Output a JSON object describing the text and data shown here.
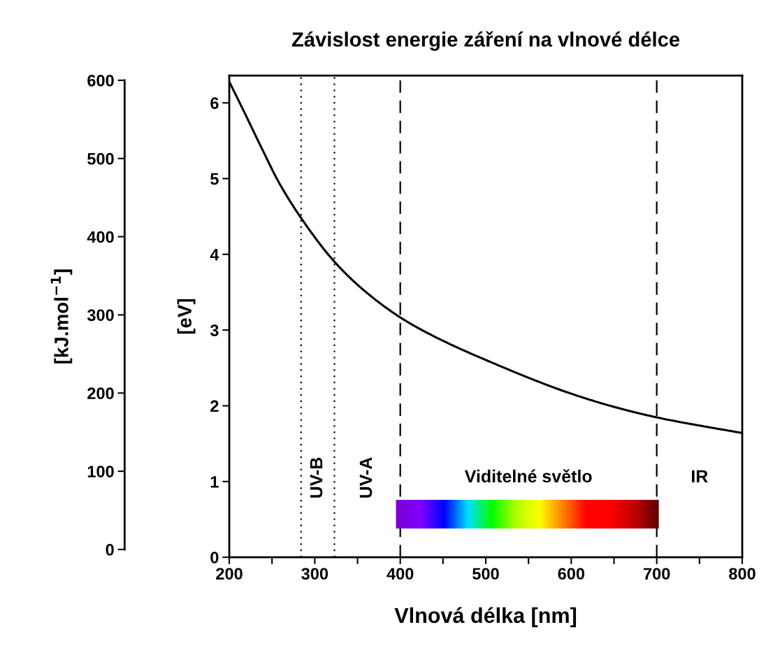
{
  "chart_data": {
    "type": "line",
    "title": "Závislost energie záření na vlnové délce",
    "xlabel": "Vlnová délka [nm]",
    "ylabel": "[eV]",
    "y2label": "[kJ.mol$^{−1}$]",
    "x": [
      200,
      217,
      238,
      258,
      284,
      324,
      358,
      401,
      439,
      499,
      600,
      652,
      703,
      800
    ],
    "series": [
      {
        "color": "#000000",
        "values": [
          6.28,
          5.89,
          5.4,
          4.95,
          4.48,
          3.89,
          3.52,
          3.16,
          2.92,
          2.61,
          2.16,
          1.98,
          1.84,
          1.64
        ]
      }
    ],
    "xlim": [
      200,
      800
    ],
    "xticks": [
      200,
      {
        "value": 250,
        "label": null
      },
      300,
      {
        "value": 350,
        "label": null
      },
      400,
      {
        "value": 450,
        "label": null
      },
      500,
      {
        "value": 550,
        "label": null
      },
      600,
      {
        "value": 650,
        "label": null
      },
      700,
      {
        "value": 750,
        "label": null
      },
      800
    ],
    "ylim": [
      0,
      6.36
    ],
    "yticks": [
      0,
      1,
      2,
      3,
      4,
      5,
      6
    ],
    "y2lim": [
      -10,
      606
    ],
    "y2ticks": [
      0,
      100,
      200,
      300,
      400,
      500,
      600
    ],
    "ref_lines": [
      {
        "axis": "x",
        "value": 284,
        "line_style": "dotted",
        "color": "#000000"
      },
      {
        "axis": "x",
        "value": 323,
        "line_style": "dotted",
        "color": "#000000"
      },
      {
        "axis": "x",
        "value": 400,
        "line_style": "dashed",
        "color": "#000000"
      },
      {
        "axis": "x",
        "value": 700,
        "line_style": "dashed",
        "color": "#000000"
      }
    ],
    "annotations": [
      "UV-B",
      "UV-A",
      "Viditelné světlo",
      "IR"
    ],
    "grid": false,
    "legend": false,
    "marker": "none",
    "line_style": "solid"
  }
}
